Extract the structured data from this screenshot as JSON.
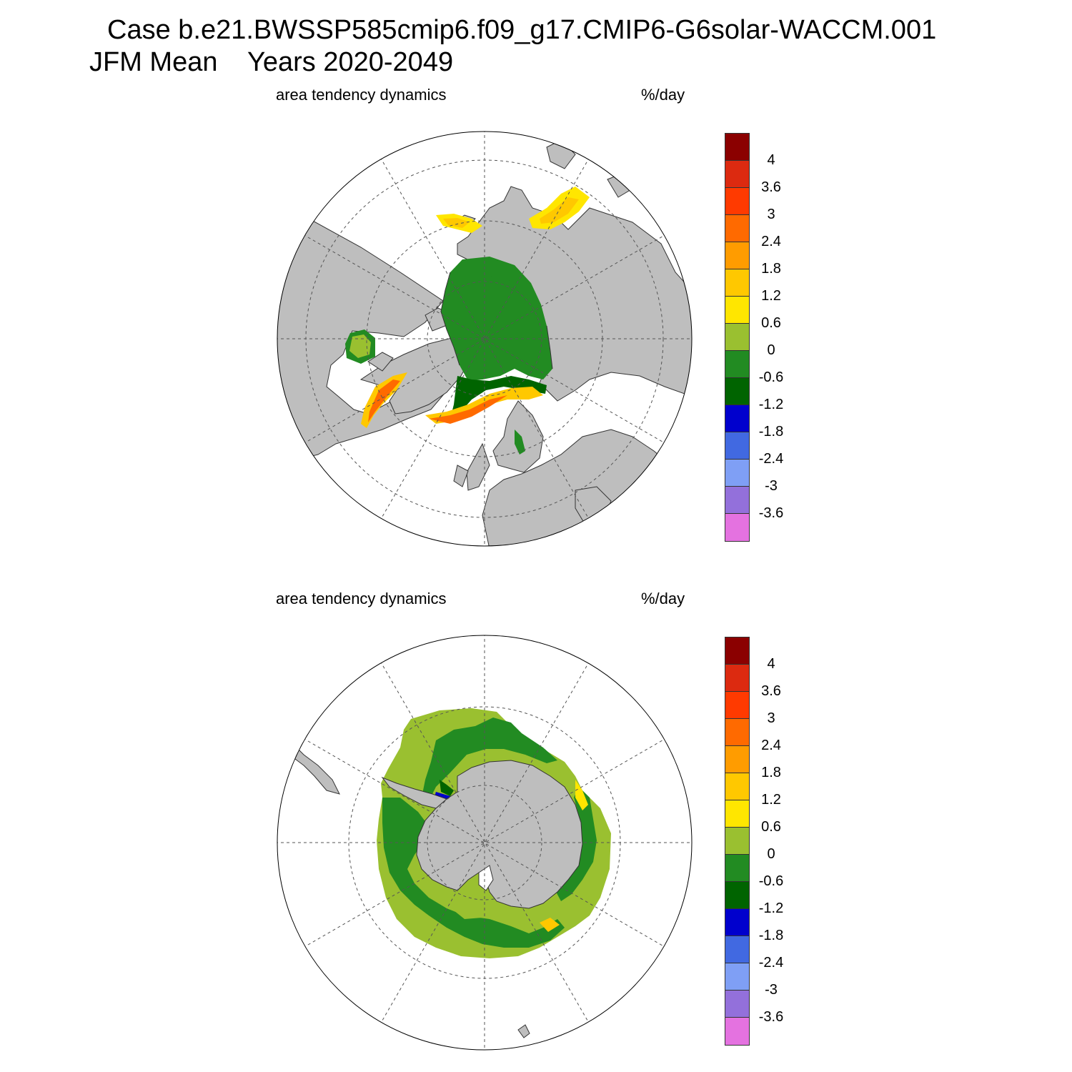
{
  "title": {
    "line1": "Case b.e21.BWSSP585cmip6.f09_g17.CMIP6-G6solar-WACCM.001",
    "line2": "JFM Mean    Years 2020-2049"
  },
  "panels": [
    {
      "id": "north",
      "hemisphere": "Arctic",
      "label_left": "area tendency dynamics",
      "label_right": "%/day"
    },
    {
      "id": "south",
      "hemisphere": "Antarctic",
      "label_left": "area tendency dynamics",
      "label_right": "%/day"
    }
  ],
  "colorbar": {
    "colors": [
      "#8b0000",
      "#dc2a10",
      "#ff3a00",
      "#ff6a00",
      "#ff9c00",
      "#ffc800",
      "#ffe600",
      "#9ac030",
      "#228b22",
      "#006400",
      "#0000cd",
      "#4169e1",
      "#7f9ff5",
      "#9370db",
      "#e472e0"
    ],
    "tick_labels": [
      "4",
      "3.6",
      "3",
      "2.4",
      "1.8",
      "1.2",
      "0.6",
      "0",
      "-0.6",
      "-1.2",
      "-1.8",
      "-2.4",
      "-3",
      "-3.6"
    ]
  },
  "map_colors": {
    "land": "#bebebe",
    "ocean": "#ffffff",
    "graticule": "#555555"
  }
}
